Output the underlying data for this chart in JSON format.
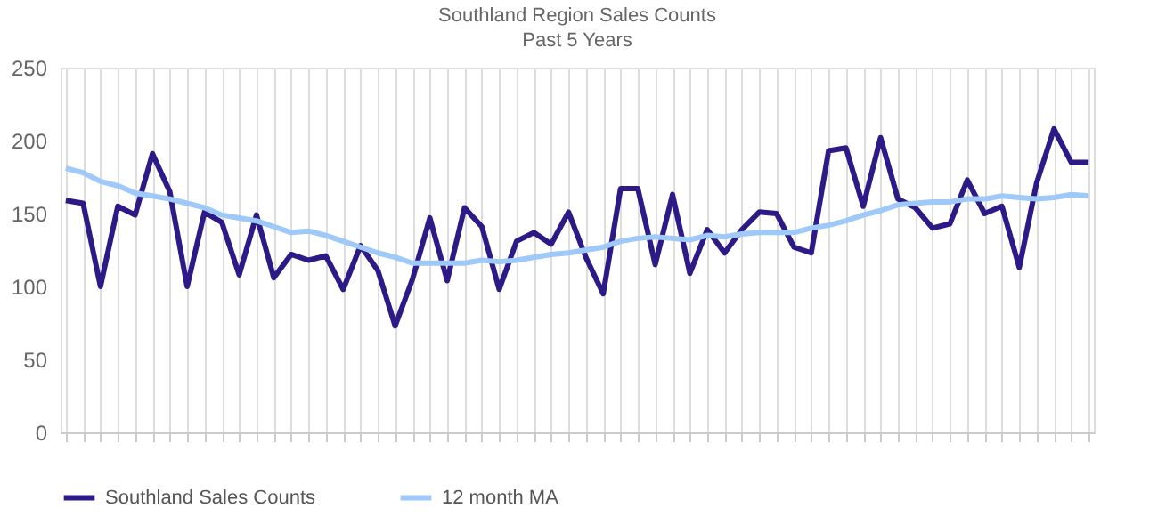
{
  "chart_data": {
    "type": "line",
    "title": "Southland Region Sales Counts",
    "subtitle": "Past 5 Years",
    "categories": [
      null,
      null,
      null,
      null,
      null,
      null,
      null,
      null,
      null,
      null,
      null,
      null,
      null,
      null,
      null,
      null,
      null,
      null,
      null,
      null,
      null,
      null,
      null,
      null,
      null,
      null,
      null,
      null,
      null,
      null,
      null,
      null,
      null,
      null,
      null,
      null,
      null,
      null,
      null,
      null,
      null,
      null,
      null,
      null,
      null,
      null,
      null,
      null,
      null,
      null,
      null,
      null,
      null,
      null,
      null,
      null,
      null,
      null,
      null,
      null
    ],
    "series": [
      {
        "name": "Southland Sales Counts",
        "color": "#2e1a87",
        "values": [
          159,
          157,
          100,
          155,
          149,
          191,
          165,
          100,
          151,
          144,
          108,
          149,
          106,
          122,
          118,
          121,
          98,
          128,
          111,
          73,
          105,
          147,
          104,
          154,
          141,
          98,
          131,
          137,
          129,
          151,
          120,
          95,
          167,
          167,
          115,
          163,
          109,
          139,
          123,
          139,
          151,
          150,
          127,
          123,
          193,
          195,
          155,
          202,
          160,
          154,
          140,
          143,
          173,
          150,
          155,
          113,
          171,
          208,
          185,
          185
        ]
      },
      {
        "name": "12 month MA",
        "color": "#9ec9f9",
        "values": [
          181,
          178,
          172,
          169,
          164,
          162,
          160,
          157,
          154,
          149,
          147,
          145,
          141,
          137,
          138,
          135,
          131,
          127,
          123,
          120,
          116,
          116,
          116,
          116,
          118,
          117,
          118,
          120,
          122,
          123,
          125,
          127,
          131,
          133,
          134,
          133,
          132,
          135,
          134,
          136,
          137,
          137,
          137,
          140,
          142,
          145,
          149,
          152,
          156,
          157,
          158,
          158,
          160,
          160,
          162,
          161,
          160,
          161,
          163,
          162
        ]
      }
    ],
    "ylim": [
      0,
      250
    ],
    "yticks": [
      0,
      50,
      100,
      150,
      200,
      250
    ],
    "grid": "x",
    "legend": "bottom",
    "marker": "none",
    "line_style": "solid"
  }
}
